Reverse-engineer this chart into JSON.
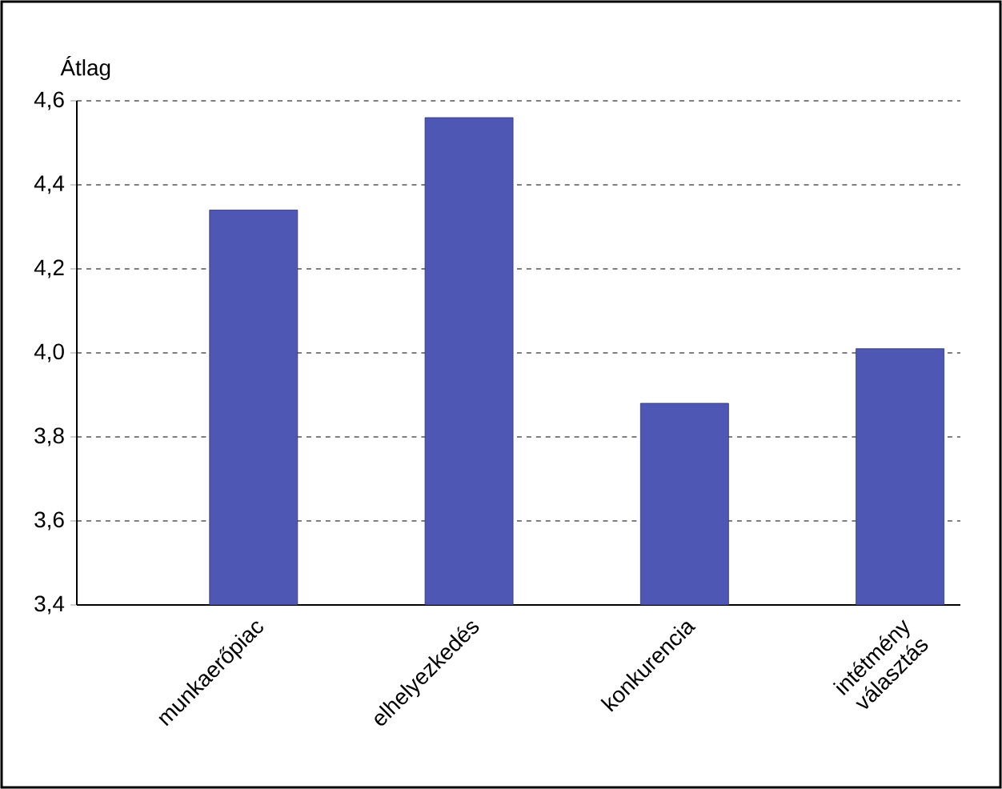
{
  "chart_data": {
    "type": "bar",
    "ylabel": "Átlag",
    "categories": [
      "munkaerőpiac",
      "elhelyezkedés",
      "konkurencia",
      "intétmény választás"
    ],
    "values": [
      4.34,
      4.56,
      3.88,
      4.01
    ],
    "color": "#4f57b5",
    "ylim": [
      3.4,
      4.6
    ],
    "yticks": [
      {
        "value": 3.4,
        "label": "3,4"
      },
      {
        "value": 3.6,
        "label": "3,6"
      },
      {
        "value": 3.8,
        "label": "3,8"
      },
      {
        "value": 4.0,
        "label": "4,0"
      },
      {
        "value": 4.2,
        "label": "4,2"
      },
      {
        "value": 4.4,
        "label": "4,4"
      },
      {
        "value": 4.6,
        "label": "4,6"
      }
    ],
    "grid": "y"
  }
}
